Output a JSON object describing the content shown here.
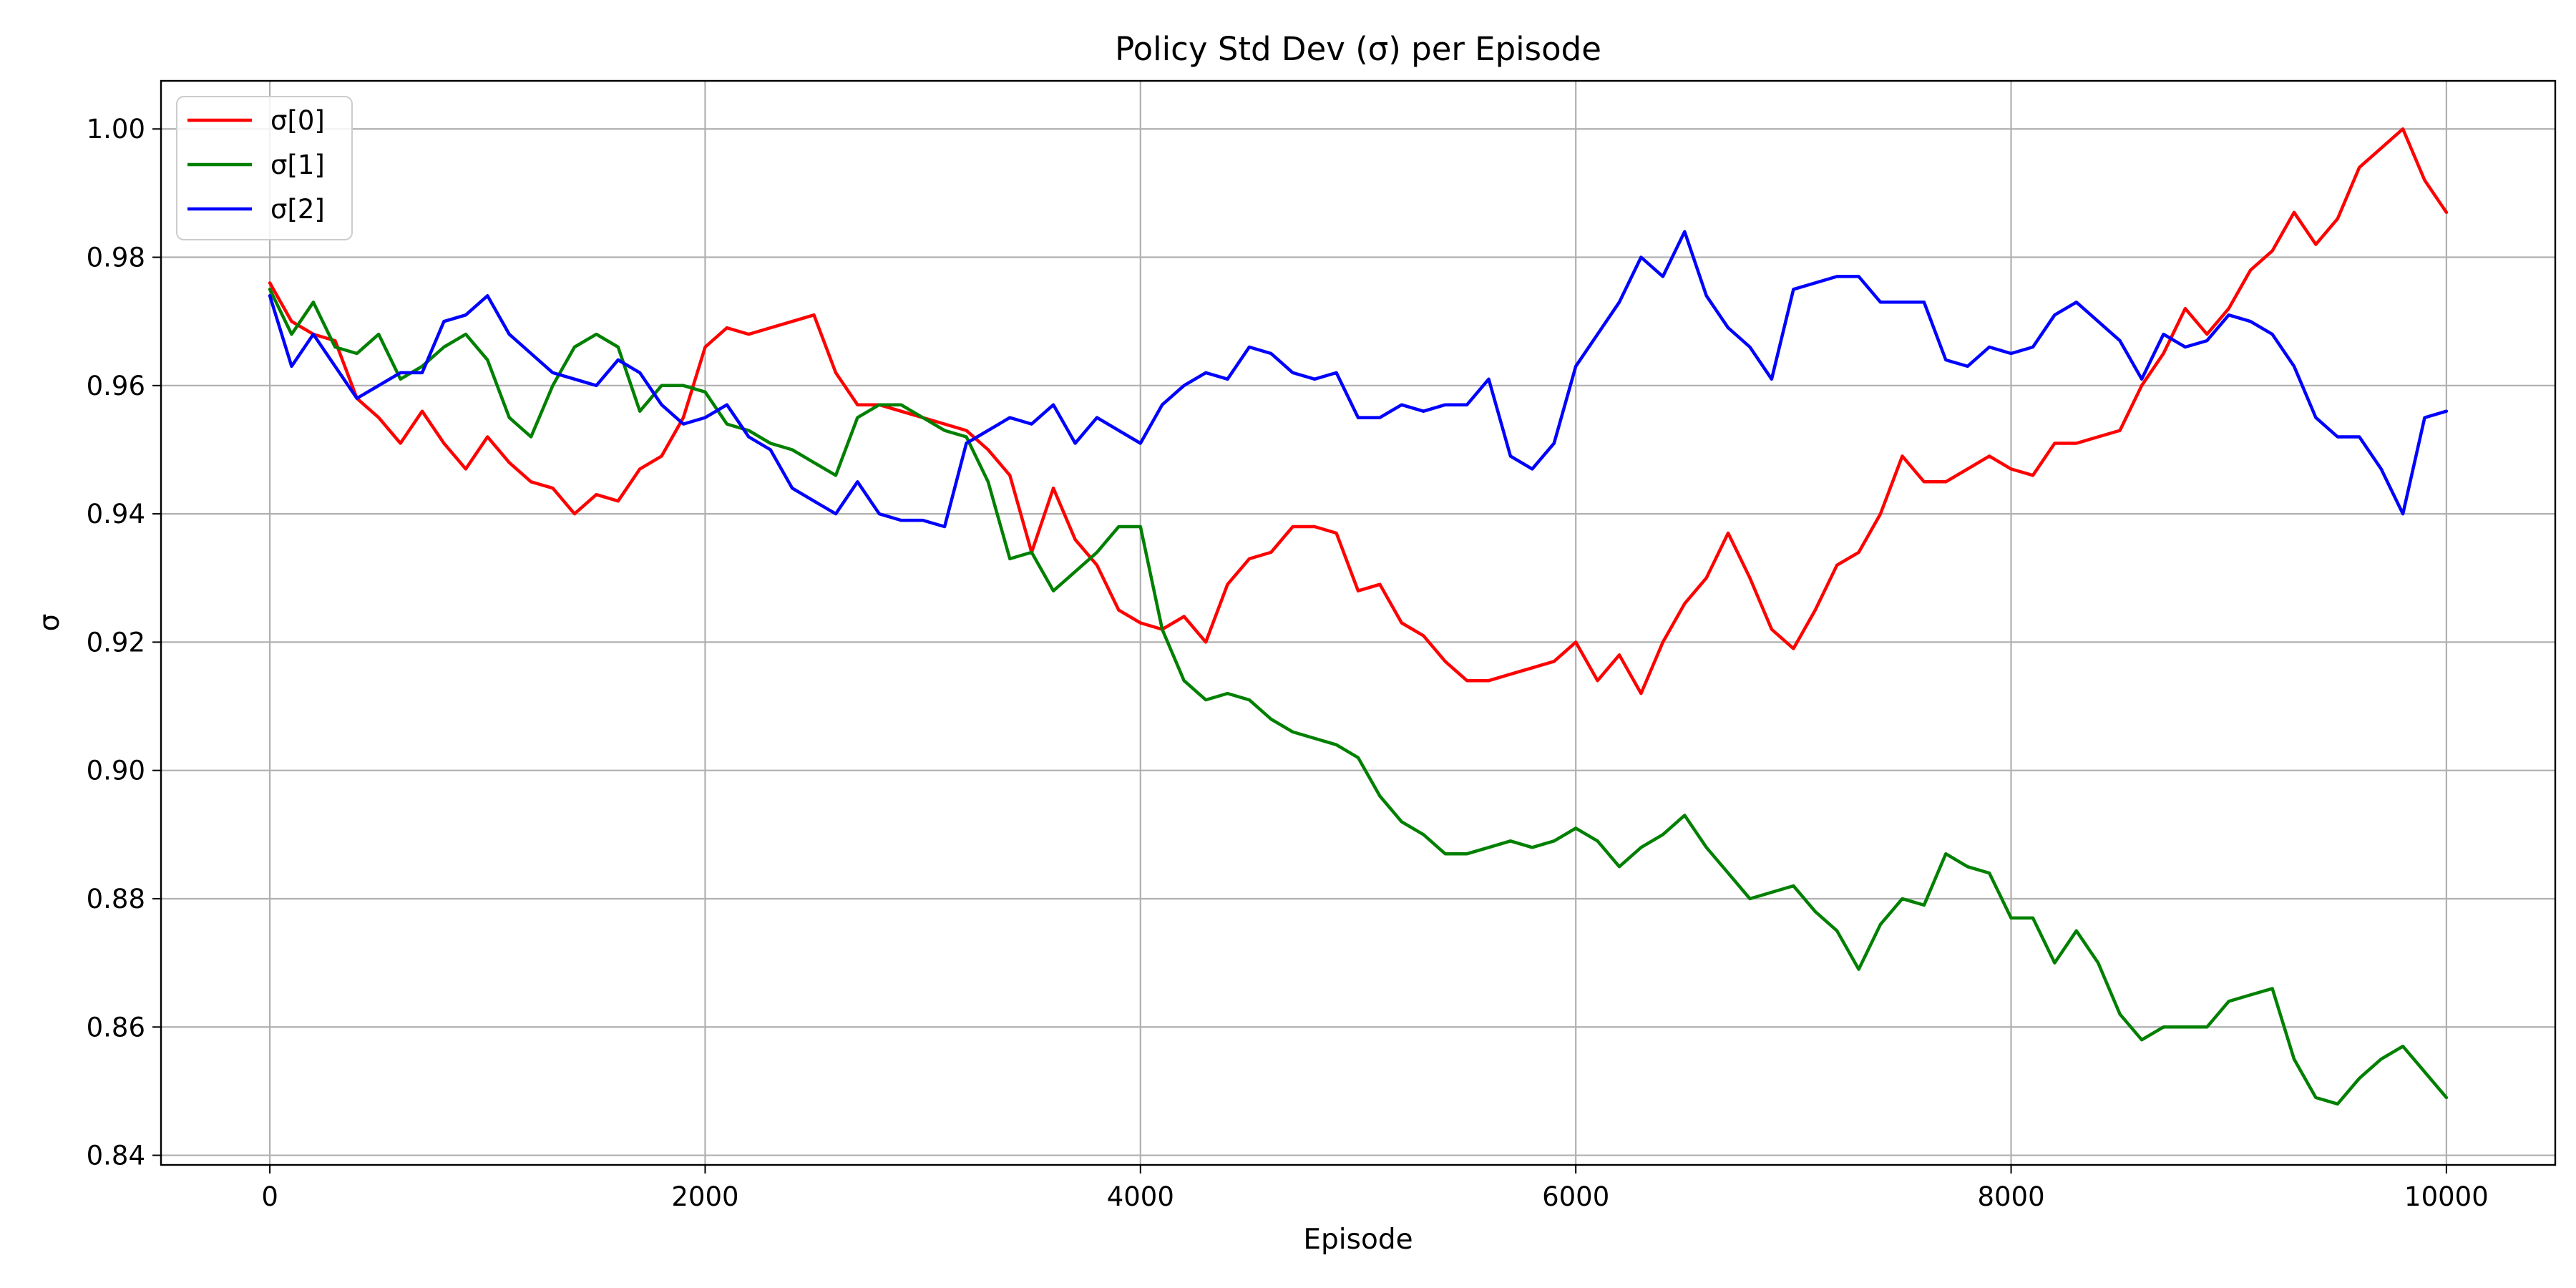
{
  "chart_data": {
    "type": "line",
    "title": "Policy Std Dev (σ) per Episode",
    "xlabel": "Episode",
    "ylabel": "σ",
    "xlim": [
      -500,
      10500
    ],
    "ylim": [
      0.8385,
      1.0075
    ],
    "xticks": [
      0,
      2000,
      4000,
      6000,
      8000,
      10000
    ],
    "xtick_labels": [
      "0",
      "2000",
      "4000",
      "6000",
      "8000",
      "10000"
    ],
    "yticks": [
      0.84,
      0.86,
      0.88,
      0.9,
      0.92,
      0.94,
      0.96,
      0.98,
      1.0
    ],
    "ytick_labels": [
      "0.84",
      "0.86",
      "0.88",
      "0.90",
      "0.92",
      "0.94",
      "0.96",
      "0.98",
      "1.00"
    ],
    "grid": true,
    "legend_position": "top-left",
    "series": [
      {
        "name": "σ[0]",
        "color": "#ff0000",
        "x": [
          0,
          100,
          200,
          300,
          400,
          500,
          600,
          700,
          800,
          900,
          1000,
          1100,
          1200,
          1300,
          1400,
          1500,
          1600,
          1700,
          1800,
          1900,
          2000,
          2100,
          2200,
          2300,
          2400,
          2500,
          2600,
          2700,
          2800,
          2900,
          3000,
          3100,
          3200,
          3300,
          3400,
          3500,
          3600,
          3700,
          3800,
          3900,
          4000,
          4100,
          4200,
          4300,
          4400,
          4500,
          4600,
          4700,
          4800,
          4900,
          5000,
          5100,
          5200,
          5300,
          5400,
          5500,
          5600,
          5700,
          5800,
          5900,
          6000,
          6100,
          6200,
          6300,
          6400,
          6500,
          6600,
          6700,
          6800,
          6900,
          7000,
          7100,
          7200,
          7300,
          7400,
          7500,
          7600,
          7700,
          7800,
          7900,
          8000,
          8100,
          8200,
          8300,
          8400,
          8500,
          8600,
          8700,
          8800,
          8900,
          9000,
          9100,
          9200,
          9300,
          9400,
          9500,
          9600,
          9700,
          9800,
          9900,
          10000
        ],
        "values": [
          0.976,
          0.97,
          0.968,
          0.967,
          0.958,
          0.955,
          0.951,
          0.956,
          0.951,
          0.947,
          0.952,
          0.948,
          0.945,
          0.944,
          0.94,
          0.943,
          0.942,
          0.947,
          0.949,
          0.955,
          0.966,
          0.969,
          0.968,
          0.969,
          0.97,
          0.971,
          0.962,
          0.957,
          0.957,
          0.956,
          0.955,
          0.954,
          0.953,
          0.95,
          0.946,
          0.934,
          0.944,
          0.936,
          0.932,
          0.925,
          0.923,
          0.922,
          0.924,
          0.92,
          0.929,
          0.933,
          0.934,
          0.938,
          0.938,
          0.937,
          0.928,
          0.929,
          0.923,
          0.921,
          0.917,
          0.914,
          0.914,
          0.915,
          0.916,
          0.917,
          0.92,
          0.914,
          0.918,
          0.912,
          0.92,
          0.926,
          0.93,
          0.937,
          0.93,
          0.922,
          0.919,
          0.925,
          0.932,
          0.934,
          0.94,
          0.949,
          0.945,
          0.945,
          0.947,
          0.949,
          0.947,
          0.946,
          0.951,
          0.951,
          0.952,
          0.953,
          0.96,
          0.965,
          0.972,
          0.968,
          0.972,
          0.978,
          0.981,
          0.987,
          0.982,
          0.986,
          0.994,
          0.997,
          1.0,
          0.992,
          0.987
        ]
      },
      {
        "name": "σ[1]",
        "color": "#008000",
        "x": [
          0,
          100,
          200,
          300,
          400,
          500,
          600,
          700,
          800,
          900,
          1000,
          1100,
          1200,
          1300,
          1400,
          1500,
          1600,
          1700,
          1800,
          1900,
          2000,
          2100,
          2200,
          2300,
          2400,
          2500,
          2600,
          2700,
          2800,
          2900,
          3000,
          3100,
          3200,
          3300,
          3400,
          3500,
          3600,
          3700,
          3800,
          3900,
          4000,
          4100,
          4200,
          4300,
          4400,
          4500,
          4600,
          4700,
          4800,
          4900,
          5000,
          5100,
          5200,
          5300,
          5400,
          5500,
          5600,
          5700,
          5800,
          5900,
          6000,
          6100,
          6200,
          6300,
          6400,
          6500,
          6600,
          6700,
          6800,
          6900,
          7000,
          7100,
          7200,
          7300,
          7400,
          7500,
          7600,
          7700,
          7800,
          7900,
          8000,
          8100,
          8200,
          8300,
          8400,
          8500,
          8600,
          8700,
          8800,
          8900,
          9000,
          9100,
          9200,
          9300,
          9400,
          9500,
          9600,
          9700,
          9800,
          9900,
          10000
        ],
        "values": [
          0.975,
          0.968,
          0.973,
          0.966,
          0.965,
          0.968,
          0.961,
          0.963,
          0.966,
          0.968,
          0.964,
          0.955,
          0.952,
          0.96,
          0.966,
          0.968,
          0.966,
          0.956,
          0.96,
          0.96,
          0.959,
          0.954,
          0.953,
          0.951,
          0.95,
          0.948,
          0.946,
          0.955,
          0.957,
          0.957,
          0.955,
          0.953,
          0.952,
          0.945,
          0.933,
          0.934,
          0.928,
          0.931,
          0.934,
          0.938,
          0.938,
          0.922,
          0.914,
          0.911,
          0.912,
          0.911,
          0.908,
          0.906,
          0.905,
          0.904,
          0.902,
          0.896,
          0.892,
          0.89,
          0.887,
          0.887,
          0.888,
          0.889,
          0.888,
          0.889,
          0.891,
          0.889,
          0.885,
          0.888,
          0.89,
          0.893,
          0.888,
          0.884,
          0.88,
          0.881,
          0.882,
          0.878,
          0.875,
          0.869,
          0.876,
          0.88,
          0.879,
          0.887,
          0.885,
          0.884,
          0.877,
          0.877,
          0.87,
          0.875,
          0.87,
          0.862,
          0.858,
          0.86,
          0.86,
          0.86,
          0.864,
          0.865,
          0.866,
          0.855,
          0.849,
          0.848,
          0.852,
          0.855,
          0.857,
          0.853,
          0.849
        ]
      },
      {
        "name": "σ[2]",
        "color": "#0000ff",
        "x": [
          0,
          100,
          200,
          300,
          400,
          500,
          600,
          700,
          800,
          900,
          1000,
          1100,
          1200,
          1300,
          1400,
          1500,
          1600,
          1700,
          1800,
          1900,
          2000,
          2100,
          2200,
          2300,
          2400,
          2500,
          2600,
          2700,
          2800,
          2900,
          3000,
          3100,
          3200,
          3300,
          3400,
          3500,
          3600,
          3700,
          3800,
          3900,
          4000,
          4100,
          4200,
          4300,
          4400,
          4500,
          4600,
          4700,
          4800,
          4900,
          5000,
          5100,
          5200,
          5300,
          5400,
          5500,
          5600,
          5700,
          5800,
          5900,
          6000,
          6100,
          6200,
          6300,
          6400,
          6500,
          6600,
          6700,
          6800,
          6900,
          7000,
          7100,
          7200,
          7300,
          7400,
          7500,
          7600,
          7700,
          7800,
          7900,
          8000,
          8100,
          8200,
          8300,
          8400,
          8500,
          8600,
          8700,
          8800,
          8900,
          9000,
          9100,
          9200,
          9300,
          9400,
          9500,
          9600,
          9700,
          9800,
          9900,
          10000
        ],
        "values": [
          0.974,
          0.963,
          0.968,
          0.963,
          0.958,
          0.96,
          0.962,
          0.962,
          0.97,
          0.971,
          0.974,
          0.968,
          0.965,
          0.962,
          0.961,
          0.96,
          0.964,
          0.962,
          0.957,
          0.954,
          0.955,
          0.957,
          0.952,
          0.95,
          0.944,
          0.942,
          0.94,
          0.945,
          0.94,
          0.939,
          0.939,
          0.938,
          0.951,
          0.953,
          0.955,
          0.954,
          0.957,
          0.951,
          0.955,
          0.953,
          0.951,
          0.957,
          0.96,
          0.962,
          0.961,
          0.966,
          0.965,
          0.962,
          0.961,
          0.962,
          0.955,
          0.955,
          0.957,
          0.956,
          0.957,
          0.957,
          0.961,
          0.949,
          0.947,
          0.951,
          0.963,
          0.968,
          0.973,
          0.98,
          0.977,
          0.984,
          0.974,
          0.969,
          0.966,
          0.961,
          0.975,
          0.976,
          0.977,
          0.977,
          0.973,
          0.973,
          0.973,
          0.964,
          0.963,
          0.966,
          0.965,
          0.966,
          0.971,
          0.973,
          0.97,
          0.967,
          0.961,
          0.968,
          0.966,
          0.967,
          0.971,
          0.97,
          0.968,
          0.963,
          0.955,
          0.952,
          0.952,
          0.947,
          0.94,
          0.955,
          0.956
        ]
      }
    ]
  }
}
